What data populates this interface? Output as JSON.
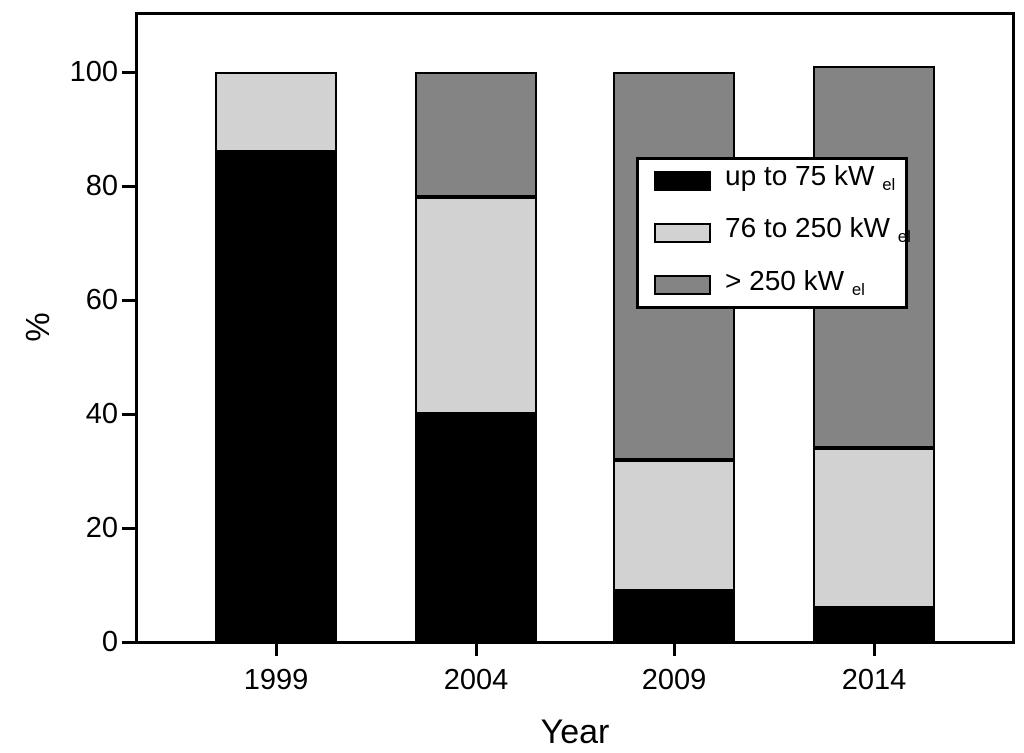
{
  "chart_data": {
    "type": "bar",
    "stacked": true,
    "title": "",
    "xlabel": "Year",
    "ylabel": "%",
    "categories": [
      "1999",
      "2004",
      "2009",
      "2014"
    ],
    "series": [
      {
        "name": "up to 75 kW",
        "name_subscript": "el",
        "color": "#000000",
        "values": [
          86,
          40,
          9,
          6
        ]
      },
      {
        "name": "76 to 250 kW",
        "name_subscript": "el",
        "color": "#d2d2d2",
        "values": [
          14,
          38,
          23,
          28
        ]
      },
      {
        "name": "> 250 kW",
        "name_subscript": "el",
        "color": "#848484",
        "values": [
          0,
          22,
          68,
          67
        ]
      }
    ],
    "y_ticks": [
      0,
      20,
      40,
      60,
      80,
      100
    ],
    "ylim": [
      0,
      110
    ],
    "grid": false,
    "legend_position": "upper-right-inside",
    "axis_color": "#000000",
    "plot_background": "#ffffff"
  }
}
